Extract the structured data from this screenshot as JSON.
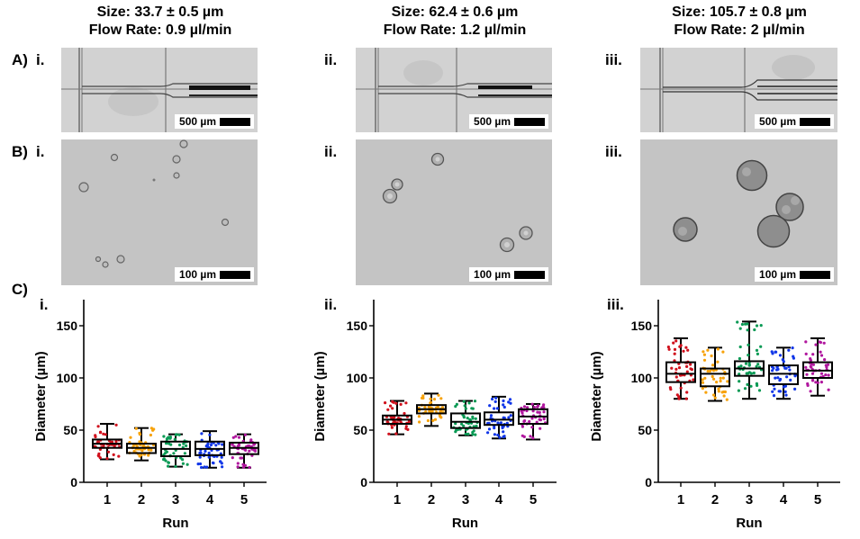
{
  "panels": {
    "row_a_label": "A)",
    "row_b_label": "B)",
    "row_c_label": "C)",
    "columns": [
      {
        "roman": "i.",
        "size": "Size: 33.7 ± 0.5 µm",
        "flow_rate": "Flow Rate: 0.9 µl/min",
        "chip_scale": "500 µm",
        "micro_scale": "100 µm"
      },
      {
        "roman": "ii.",
        "size": "Size: 62.4 ± 0.6 µm",
        "flow_rate": "Flow Rate: 1.2 µl/min",
        "chip_scale": "500 µm",
        "micro_scale": "100 µm"
      },
      {
        "roman": "iii.",
        "size": "Size: 105.7 ± 0.8 µm",
        "flow_rate": "Flow Rate: 2 µl/min",
        "chip_scale": "500 µm",
        "micro_scale": "100 µm"
      }
    ]
  },
  "colors": {
    "run_colors": [
      "#d0101c",
      "#f7a20a",
      "#0a9a55",
      "#1036e8",
      "#b0169e"
    ],
    "box_stroke": "#000000"
  },
  "chart_data": [
    {
      "type": "box",
      "panel": "i.",
      "title": "",
      "xlabel": "Run",
      "ylabel": "Diameter (µm)",
      "categories": [
        "1",
        "2",
        "3",
        "4",
        "5"
      ],
      "yticks": [
        "0",
        "50",
        "100",
        "150"
      ],
      "ylim": [
        0,
        175
      ],
      "grid": false,
      "series": [
        {
          "name": "1",
          "min": 22,
          "q1": 33,
          "median": 37,
          "q3": 41,
          "max": 56
        },
        {
          "name": "2",
          "min": 21,
          "q1": 28,
          "median": 33,
          "q3": 37,
          "max": 52
        },
        {
          "name": "3",
          "min": 15,
          "q1": 25,
          "median": 32,
          "q3": 39,
          "max": 46
        },
        {
          "name": "4",
          "min": 14,
          "q1": 26,
          "median": 32,
          "q3": 39,
          "max": 49
        },
        {
          "name": "5",
          "min": 14,
          "q1": 27,
          "median": 33,
          "q3": 38,
          "max": 46
        }
      ]
    },
    {
      "type": "box",
      "panel": "ii.",
      "title": "",
      "xlabel": "Run",
      "ylabel": "Diameter (µm)",
      "categories": [
        "1",
        "2",
        "3",
        "4",
        "5"
      ],
      "yticks": [
        "0",
        "50",
        "100",
        "150"
      ],
      "ylim": [
        0,
        175
      ],
      "grid": false,
      "series": [
        {
          "name": "1",
          "min": 46,
          "q1": 56,
          "median": 60,
          "q3": 64,
          "max": 78
        },
        {
          "name": "2",
          "min": 54,
          "q1": 66,
          "median": 70,
          "q3": 74,
          "max": 85
        },
        {
          "name": "3",
          "min": 45,
          "q1": 52,
          "median": 58,
          "q3": 66,
          "max": 78
        },
        {
          "name": "4",
          "min": 42,
          "q1": 55,
          "median": 60,
          "q3": 67,
          "max": 82
        },
        {
          "name": "5",
          "min": 41,
          "q1": 56,
          "median": 63,
          "q3": 70,
          "max": 75
        }
      ]
    },
    {
      "type": "box",
      "panel": "iii.",
      "title": "",
      "xlabel": "Run",
      "ylabel": "Diameter (µm)",
      "categories": [
        "1",
        "2",
        "3",
        "4",
        "5"
      ],
      "yticks": [
        "0",
        "50",
        "100",
        "150"
      ],
      "ylim": [
        0,
        175
      ],
      "grid": false,
      "series": [
        {
          "name": "1",
          "min": 80,
          "q1": 96,
          "median": 104,
          "q3": 115,
          "max": 138
        },
        {
          "name": "2",
          "min": 78,
          "q1": 92,
          "median": 104,
          "q3": 109,
          "max": 129
        },
        {
          "name": "3",
          "min": 80,
          "q1": 102,
          "median": 109,
          "q3": 116,
          "max": 154
        },
        {
          "name": "4",
          "min": 80,
          "q1": 94,
          "median": 104,
          "q3": 112,
          "max": 129
        },
        {
          "name": "5",
          "min": 83,
          "q1": 100,
          "median": 107,
          "q3": 115,
          "max": 138
        }
      ]
    }
  ]
}
